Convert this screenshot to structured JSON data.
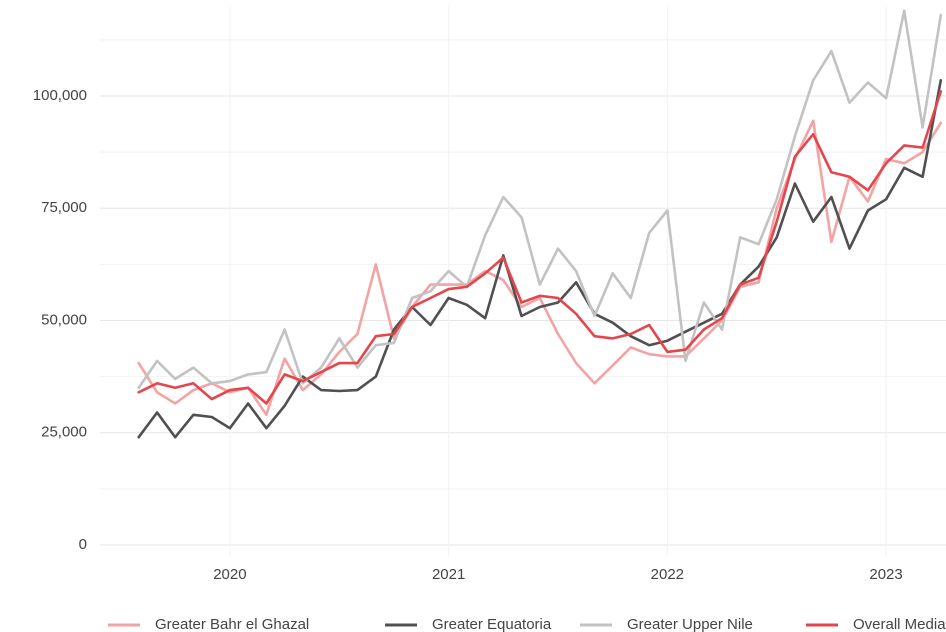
{
  "chart_data": {
    "type": "line",
    "x": [
      2019.583,
      2019.667,
      2019.75,
      2019.833,
      2019.917,
      2020,
      2020.083,
      2020.167,
      2020.25,
      2020.333,
      2020.417,
      2020.5,
      2020.583,
      2020.667,
      2020.75,
      2020.833,
      2020.917,
      2021,
      2021.083,
      2021.167,
      2021.25,
      2021.333,
      2021.417,
      2021.5,
      2021.583,
      2021.667,
      2021.75,
      2021.833,
      2021.917,
      2022,
      2022.083,
      2022.167,
      2022.25,
      2022.333,
      2022.417,
      2022.5,
      2022.583,
      2022.667,
      2022.75,
      2022.833,
      2022.917,
      2023,
      2023.083,
      2023.167,
      2023.25
    ],
    "xlim": [
      2019.406,
      2023.274
    ],
    "xticks": [
      2020,
      2021,
      2022,
      2023
    ],
    "ylim": [
      -2500,
      120000
    ],
    "yticks": [
      0,
      {
        "value": 25000,
        "label": "25,000"
      },
      {
        "value": 50000,
        "label": "50,000"
      },
      {
        "value": 75000,
        "label": "75,000"
      },
      {
        "value": 100000,
        "label": "100,000"
      }
    ],
    "yminorticks": [
      12500,
      37500,
      62500,
      87500,
      112500
    ],
    "grid": true,
    "legend": "bottom",
    "series": [
      {
        "name": "Greater Bahr el Ghazal",
        "color": "#f4a3a5",
        "values": [
          40500,
          34000,
          31500,
          34500,
          36000,
          34000,
          35000,
          29000,
          41500,
          34500,
          38000,
          43000,
          47000,
          62500,
          46000,
          53000,
          58000,
          58000,
          58000,
          61000,
          59000,
          53000,
          55000,
          47000,
          40500,
          36000,
          40000,
          44000,
          42500,
          42000,
          42000,
          46000,
          50000,
          57500,
          58500,
          75000,
          86000,
          94500,
          67500,
          82000,
          76500,
          86000,
          85000,
          87500,
          94000
        ]
      },
      {
        "name": "Greater Equatoria",
        "color": "#505050",
        "values": [
          24000,
          29500,
          24000,
          29000,
          28500,
          26000,
          31500,
          26000,
          31000,
          37500,
          34500,
          34300,
          34500,
          37500,
          48000,
          53000,
          49000,
          55000,
          53500,
          50500,
          64500,
          51000,
          53000,
          54000,
          58500,
          51500,
          49500,
          46500,
          44500,
          45500,
          47500,
          49500,
          51500,
          58000,
          62000,
          68500,
          80500,
          72000,
          77500,
          66000,
          74500,
          77000,
          84000,
          82000,
          103500
        ]
      },
      {
        "name": "Greater Upper Nile",
        "color": "#c2c2c2",
        "values": [
          35000,
          41000,
          37000,
          39500,
          36000,
          36500,
          38000,
          38500,
          48000,
          36000,
          39500,
          46000,
          39500,
          44500,
          45000,
          55000,
          56500,
          61000,
          57500,
          69000,
          77500,
          73000,
          58000,
          66000,
          61000,
          51000,
          60500,
          55000,
          69500,
          74500,
          41000,
          54000,
          48000,
          68500,
          67000,
          77000,
          91000,
          103500,
          110000,
          98500,
          103000,
          99500,
          119000,
          93000,
          118000
        ]
      },
      {
        "name": "Overall Median",
        "color": "#e5464b",
        "values": [
          34000,
          36000,
          35000,
          36000,
          32500,
          34500,
          35000,
          31500,
          38000,
          36500,
          38500,
          40500,
          40500,
          46500,
          47000,
          53000,
          55000,
          57000,
          57500,
          60500,
          64000,
          54000,
          55500,
          55000,
          51500,
          46500,
          46000,
          47000,
          49000,
          43000,
          43500,
          48000,
          50500,
          58000,
          59500,
          72000,
          86500,
          91500,
          83000,
          82000,
          79000,
          85000,
          89000,
          88500,
          101000
        ]
      }
    ]
  }
}
